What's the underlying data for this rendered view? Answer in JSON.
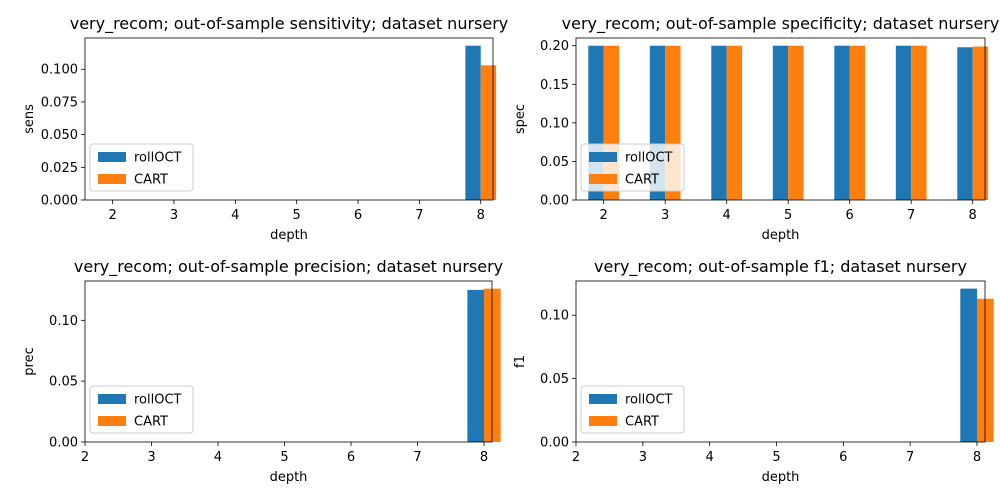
{
  "colors": {
    "rollOCT": "#1f77b4",
    "CART": "#ff7f0e"
  },
  "chart_data": [
    {
      "type": "bar",
      "title": "very_recom; out-of-sample sensitivity; dataset nursery",
      "xlabel": "depth",
      "ylabel": "sens",
      "categories": [
        2,
        3,
        4,
        5,
        6,
        7,
        8
      ],
      "xticks": [
        "2",
        "3",
        "4",
        "5",
        "6",
        "7",
        "8"
      ],
      "series": [
        {
          "name": "rollOCT",
          "values": [
            0,
            0,
            0,
            0,
            0,
            0,
            0.118
          ]
        },
        {
          "name": "CART",
          "values": [
            0,
            0,
            0,
            0,
            0,
            0,
            0.103
          ]
        }
      ],
      "ylim": [
        0,
        0.1239
      ],
      "yticks": [
        "0.000",
        "0.025",
        "0.050",
        "0.075",
        "0.100"
      ],
      "ytick_values": [
        0,
        0.025,
        0.05,
        0.075,
        0.1
      ],
      "legend": "lower-left",
      "grid": false
    },
    {
      "type": "bar",
      "title": "very_recom; out-of-sample specificity; dataset nursery",
      "xlabel": "depth",
      "ylabel": "spec",
      "categories": [
        2,
        3,
        4,
        5,
        6,
        7,
        8
      ],
      "xticks": [
        "2",
        "3",
        "4",
        "5",
        "6",
        "7",
        "8"
      ],
      "series": [
        {
          "name": "rollOCT",
          "values": [
            0.2,
            0.2,
            0.2,
            0.2,
            0.2,
            0.2,
            0.198
          ]
        },
        {
          "name": "CART",
          "values": [
            0.2,
            0.2,
            0.2,
            0.2,
            0.2,
            0.2,
            0.199
          ]
        }
      ],
      "ylim": [
        0,
        0.21
      ],
      "yticks": [
        "0.00",
        "0.05",
        "0.10",
        "0.15",
        "0.20"
      ],
      "ytick_values": [
        0,
        0.05,
        0.1,
        0.15,
        0.2
      ],
      "legend": "lower-left",
      "grid": false
    },
    {
      "type": "bar",
      "title": "very_recom; out-of-sample precision; dataset nursery",
      "xlabel": "depth",
      "ylabel": "prec",
      "categories": [
        2,
        3,
        4,
        5,
        6,
        7,
        8
      ],
      "xticks": [
        "2",
        "3",
        "4",
        "5",
        "6",
        "7",
        "8"
      ],
      "series": [
        {
          "name": "rollOCT",
          "values": [
            0,
            0,
            0,
            0,
            0,
            0,
            0.125
          ]
        },
        {
          "name": "CART",
          "values": [
            0,
            0,
            0,
            0,
            0,
            0,
            0.126
          ]
        }
      ],
      "ylim": [
        0,
        0.1323
      ],
      "yticks": [
        "0.00",
        "0.05",
        "0.10"
      ],
      "ytick_values": [
        0,
        0.05,
        0.1
      ],
      "legend": "lower-left",
      "grid": false
    },
    {
      "type": "bar",
      "title": "very_recom; out-of-sample f1; dataset nursery",
      "xlabel": "depth",
      "ylabel": "f1",
      "categories": [
        2,
        3,
        4,
        5,
        6,
        7,
        8
      ],
      "xticks": [
        "2",
        "3",
        "4",
        "5",
        "6",
        "7",
        "8"
      ],
      "series": [
        {
          "name": "rollOCT",
          "values": [
            0,
            0,
            0,
            0,
            0,
            0,
            0.121
          ]
        },
        {
          "name": "CART",
          "values": [
            0,
            0,
            0,
            0,
            0,
            0,
            0.113
          ]
        }
      ],
      "ylim": [
        0,
        0.127
      ],
      "yticks": [
        "0.00",
        "0.05",
        "0.10"
      ],
      "ytick_values": [
        0,
        0.05,
        0.1
      ],
      "legend": "lower-left",
      "grid": false
    }
  ]
}
